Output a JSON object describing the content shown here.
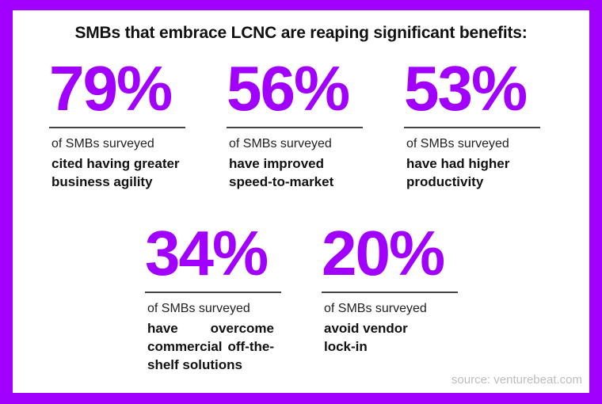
{
  "title": "SMBs that embrace LCNC are reaping significant benefits:",
  "stats": [
    {
      "value": "79%",
      "subtitle": "of SMBs surveyed",
      "description": "cited having greater business agility"
    },
    {
      "value": "56%",
      "subtitle": "of SMBs surveyed",
      "description": "have improved speed-to-market"
    },
    {
      "value": "53%",
      "subtitle": "of SMBs surveyed",
      "description": "have had higher productivity"
    },
    {
      "value": "34%",
      "subtitle": "of SMBs surveyed",
      "description": "have overcome commercial off-the-shelf solutions"
    },
    {
      "value": "20%",
      "subtitle": "of SMBs surveyed",
      "description": "avoid vendor lock-in"
    }
  ],
  "source": "source: venturebeat.com",
  "colors": {
    "accent": "#A100FF",
    "background": "#FFFFFF"
  }
}
